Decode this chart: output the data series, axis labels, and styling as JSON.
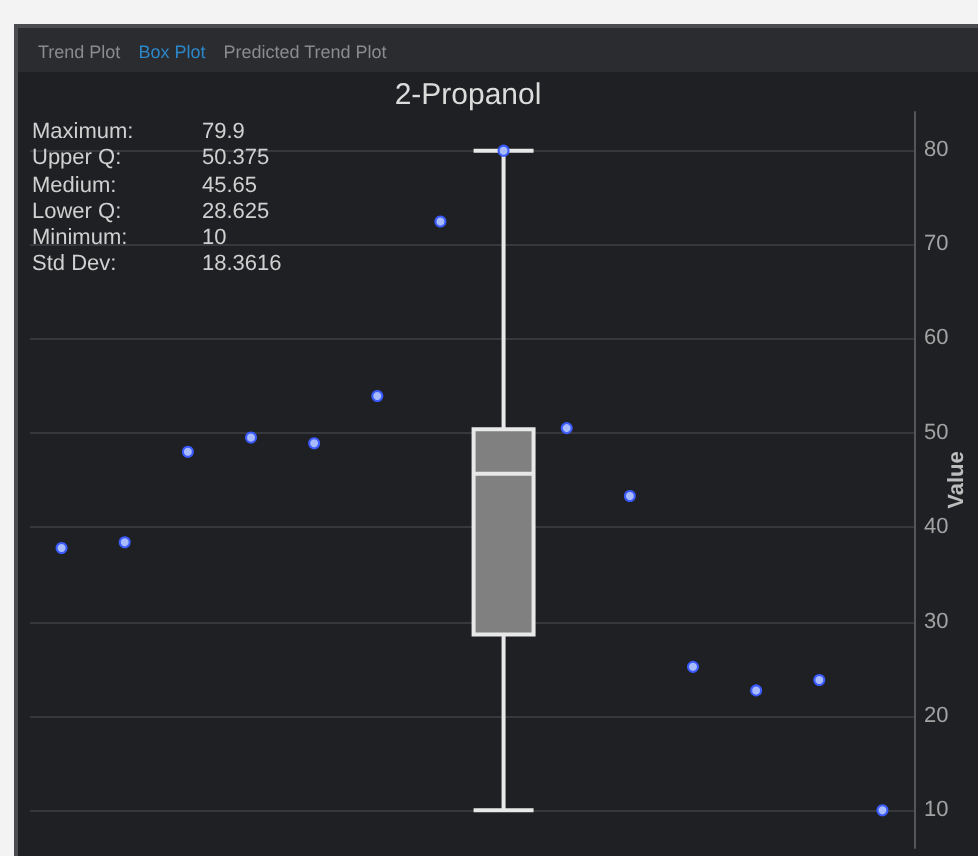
{
  "chart_data": {
    "type": "box",
    "title": "2-Propanol",
    "ylabel": "Value",
    "annotations": [
      "Trend Plot",
      "Box Plot",
      "Predicted Trend Plot",
      "Maximum:",
      "79.9",
      "Upper Q:",
      "50.375",
      "Medium:",
      "45.65",
      "Lower Q:",
      "28.625",
      "Minimum:",
      "10",
      "Std Dev:",
      "18.3616"
    ],
    "categories": [
      null,
      null,
      null,
      null,
      null,
      null,
      null,
      null,
      null,
      null,
      null,
      null,
      null,
      null
    ],
    "series": [
      {
        "color": "#808080",
        "boxes": [
          null,
          null,
          null,
          null,
          null,
          null,
          null,
          {
            "low": 10,
            "q1": 28.625,
            "median": 45.65,
            "q3": 50.375,
            "high": 79.9
          },
          null,
          null,
          null,
          null,
          null,
          null
        ]
      },
      {
        "type": "scatter",
        "color": "#a9bbff",
        "values": [
          37.8,
          38.4,
          48.0,
          49.5,
          48.9,
          53.9,
          72.4,
          79.9,
          50.5,
          43.3,
          25.2,
          22.7,
          23.8,
          10
        ]
      }
    ],
    "ylim": [
      6,
      84
    ],
    "yticks": [
      10,
      20,
      30,
      40,
      50,
      60,
      70,
      80
    ],
    "grid": "y",
    "tick_labels": "y",
    "marker": "circle"
  }
}
